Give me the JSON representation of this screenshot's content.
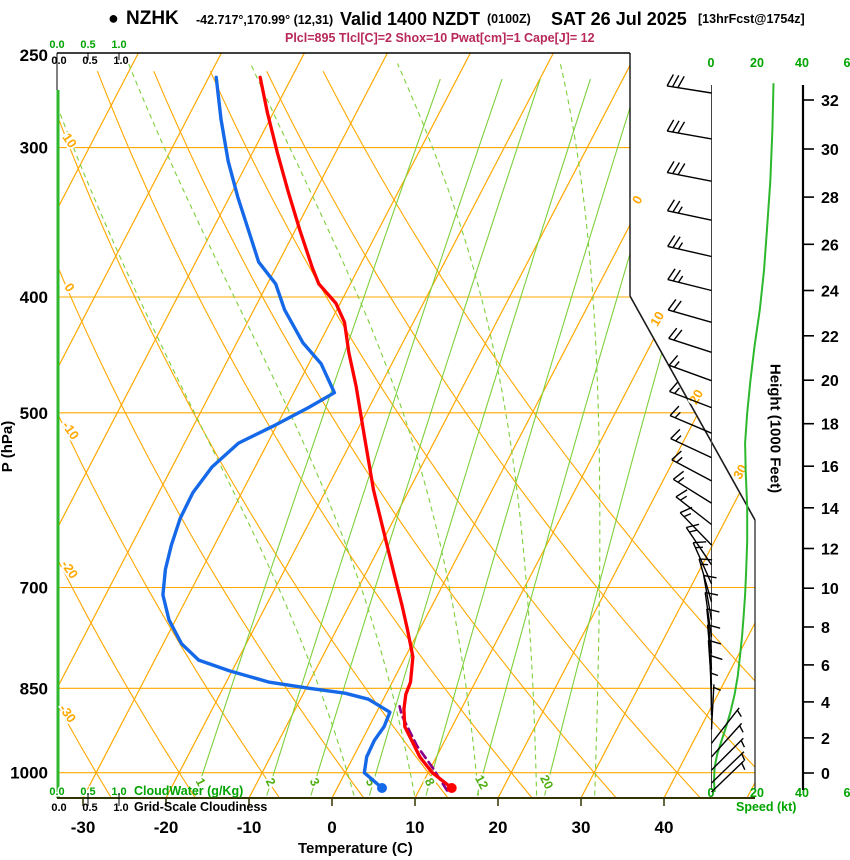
{
  "header": {
    "bullet": "●",
    "station": "NZHK",
    "coords": "-42.717°,170.99° (12,31)",
    "valid_main": "Valid 1400 NZDT",
    "valid_z": "(0100Z)",
    "valid_date": "SAT 26 Jul 2025",
    "fcst": "[13hrFcst@1754z]",
    "indices": "Plcl=895 Tlcl[C]=2 Shox=10 Pwat[cm]=1 Cape[J]= 12"
  },
  "axis_titles": {
    "pressure": "P (hPa)",
    "temperature": "Temperature (C)",
    "height": "Height (1000 Feet)",
    "speed": "Speed (kt)",
    "cloudwater": "CloudWater (g/Kg)",
    "cloudiness": "Grid-Scale Cloudiness"
  },
  "chart_data": {
    "type": "skewt-logp-sounding",
    "pressure_axis": {
      "unit": "hPa",
      "range": [
        250,
        1050
      ],
      "ticks": [
        250,
        300,
        400,
        500,
        700,
        850,
        1000
      ]
    },
    "temperature_axis": {
      "unit": "C",
      "ticks": [
        -30,
        -20,
        -10,
        0,
        10,
        20,
        30,
        40
      ]
    },
    "height_axis": {
      "unit": "1000 ft",
      "ticks": [
        0,
        2,
        4,
        6,
        8,
        10,
        12,
        14,
        16,
        18,
        20,
        22,
        24,
        26,
        28,
        30,
        32
      ]
    },
    "speed_axis": {
      "unit": "kt",
      "ticks": [
        "0",
        "20",
        "40",
        "6"
      ]
    },
    "cloud_scale_ticks": [
      "0.0",
      "0.5",
      "1.0"
    ],
    "isotherm_labels_right": [
      "0",
      "10",
      "20",
      "30"
    ],
    "dry_adiabat_labels_left": [
      "10",
      "0",
      "-10",
      "-20",
      "-30"
    ],
    "mixing_ratio_labels": [
      "1",
      "2",
      "3",
      "5",
      "8",
      "12",
      "20"
    ],
    "mixing_ratio_lines_gkg": [
      1,
      2,
      3,
      5,
      8,
      12,
      20
    ],
    "moist_adiabat_surface_temps_c": [
      2.5,
      9.8,
      17.5,
      24.5,
      31.5
    ],
    "isotherms_c": [
      -80,
      -70,
      -60,
      -50,
      -40,
      -30,
      -20,
      -10,
      0,
      10,
      20,
      30,
      40,
      50
    ],
    "dry_adiabats_c": [
      -40,
      -30,
      -20,
      -10,
      0,
      10,
      20,
      30,
      40,
      50,
      60
    ],
    "temperature_profile": {
      "p": [
        1030,
        1000,
        970,
        940,
        915,
        885,
        860,
        840,
        800,
        760,
        725,
        700,
        640,
        580,
        525,
        475,
        445,
        420,
        405,
        390,
        378,
        352,
        327,
        303,
        280,
        262
      ],
      "t": [
        13.8,
        10.5,
        8.0,
        6.0,
        4.3,
        3.1,
        2.4,
        2.2,
        0.9,
        -1.4,
        -3.6,
        -5.3,
        -9.6,
        -14.3,
        -18.6,
        -22.9,
        -25.9,
        -28.3,
        -30.5,
        -33.8,
        -35.6,
        -39.4,
        -43.2,
        -47.0,
        -50.8,
        -53.8
      ]
    },
    "dewpoint_profile": {
      "p": [
        1030,
        1000,
        970,
        940,
        915,
        890,
        868,
        858,
        850,
        840,
        822,
        805,
        780,
        745,
        710,
        676,
        645,
        613,
        583,
        555,
        530,
        513,
        495,
        481,
        455,
        437,
        410,
        390,
        374,
        352,
        330,
        308,
        284,
        262
      ],
      "t": [
        5.4,
        2.3,
        1.6,
        1.5,
        1.8,
        1.6,
        -1.8,
        -5.0,
        -9.6,
        -14.8,
        -20.3,
        -24.7,
        -27.8,
        -30.8,
        -33.1,
        -34.4,
        -35.2,
        -35.8,
        -35.9,
        -35.2,
        -33.5,
        -30.4,
        -27.3,
        -25.1,
        -28.5,
        -32.0,
        -36.3,
        -39.0,
        -42.4,
        -45.6,
        -49.0,
        -52.4,
        -55.9,
        -59.1
      ]
    },
    "parcel_path": {
      "p": [
        1035,
        990,
        950,
        915,
        895,
        880
      ],
      "t": [
        13.4,
        10.2,
        7.0,
        4.6,
        3.2,
        2.4
      ]
    },
    "wind_profile": [
      [
        270,
        29,
        279
      ],
      [
        295,
        29,
        280
      ],
      [
        320,
        28,
        281
      ],
      [
        345,
        27,
        282
      ],
      [
        370,
        25,
        283
      ],
      [
        395,
        23,
        284
      ],
      [
        420,
        21,
        286
      ],
      [
        445,
        19,
        288
      ],
      [
        470,
        17,
        290
      ],
      [
        495,
        16,
        291
      ],
      [
        520,
        16.5,
        293
      ],
      [
        545,
        17,
        295
      ],
      [
        570,
        17,
        298
      ],
      [
        595,
        16.5,
        302
      ],
      [
        620,
        16,
        308
      ],
      [
        645,
        15.5,
        316
      ],
      [
        670,
        15,
        326
      ],
      [
        695,
        14,
        336
      ],
      [
        720,
        13,
        344
      ],
      [
        745,
        12,
        350
      ],
      [
        770,
        11,
        352
      ],
      [
        795,
        10,
        354
      ],
      [
        820,
        9,
        355
      ],
      [
        845,
        8.5,
        356
      ],
      [
        870,
        7.5,
        358
      ],
      [
        895,
        7,
        359
      ],
      [
        920,
        6,
        3
      ],
      [
        945,
        5,
        38
      ],
      [
        970,
        4,
        42
      ],
      [
        995,
        3,
        45
      ],
      [
        1020,
        3,
        46
      ],
      [
        1038,
        3,
        46
      ]
    ],
    "speed_profile": {
      "p": [
        265,
        290,
        320,
        350,
        380,
        410,
        440,
        470,
        500,
        530,
        560,
        600,
        640,
        680,
        710,
        740,
        770,
        800,
        830,
        860,
        890,
        915,
        940,
        965,
        990,
        1015,
        1038
      ],
      "kt": [
        29.5,
        29,
        28,
        26.5,
        25,
        23,
        20.5,
        18.5,
        17,
        16,
        16.3,
        17,
        17,
        16.5,
        16,
        15.3,
        14.5,
        13.5,
        12.5,
        11,
        9,
        7,
        4.8,
        2.7,
        1.5,
        1.2,
        1.5
      ]
    },
    "cloudwater_profile": {
      "value": 0.0
    },
    "cloudiness_profile": {
      "value": 0.0
    },
    "surface": {
      "temp_c": 13.8,
      "dewpoint_c": 5.4,
      "pressure_hpa": 1030
    },
    "colors": {
      "grid_orange": "#FFA800",
      "grid_green": "#7ED03C",
      "scale_green": "#00A400",
      "profile_green": "#2DB82D",
      "temperature_red": "#FF0000",
      "dewpoint_blue": "#1569E8",
      "parcel_purple": "#880088",
      "indices_crimson": "#b8285a",
      "axis_dark": "#333300"
    }
  }
}
